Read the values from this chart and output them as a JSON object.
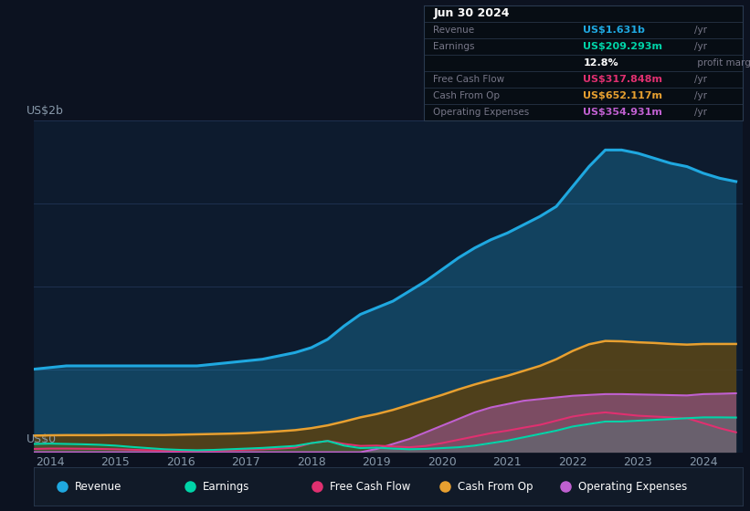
{
  "bg_color": "#0c1220",
  "plot_bg_color": "#0d1b2e",
  "ylabel": "US$2b",
  "y0label": "US$0",
  "series_colors": {
    "Revenue": "#1fa8e0",
    "Earnings": "#00d4a8",
    "Free Cash Flow": "#e03070",
    "Cash From Op": "#e8a030",
    "Operating Expenses": "#c060d0"
  },
  "legend_entries": [
    "Revenue",
    "Earnings",
    "Free Cash Flow",
    "Cash From Op",
    "Operating Expenses"
  ],
  "x_years": [
    2013.75,
    2014.0,
    2014.25,
    2014.5,
    2014.75,
    2015.0,
    2015.25,
    2015.5,
    2015.75,
    2016.0,
    2016.25,
    2016.5,
    2016.75,
    2017.0,
    2017.25,
    2017.5,
    2017.75,
    2018.0,
    2018.25,
    2018.5,
    2018.75,
    2019.0,
    2019.25,
    2019.5,
    2019.75,
    2020.0,
    2020.25,
    2020.5,
    2020.75,
    2021.0,
    2021.25,
    2021.5,
    2021.75,
    2022.0,
    2022.25,
    2022.5,
    2022.75,
    2023.0,
    2023.25,
    2023.5,
    2023.75,
    2024.0,
    2024.25,
    2024.5
  ],
  "revenue": [
    0.5,
    0.51,
    0.52,
    0.52,
    0.52,
    0.52,
    0.52,
    0.52,
    0.52,
    0.52,
    0.52,
    0.53,
    0.54,
    0.55,
    0.56,
    0.58,
    0.6,
    0.63,
    0.68,
    0.76,
    0.83,
    0.87,
    0.91,
    0.97,
    1.03,
    1.1,
    1.17,
    1.23,
    1.28,
    1.32,
    1.37,
    1.42,
    1.48,
    1.6,
    1.72,
    1.82,
    1.82,
    1.8,
    1.77,
    1.74,
    1.72,
    1.68,
    1.65,
    1.63
  ],
  "earnings": [
    0.05,
    0.052,
    0.05,
    0.048,
    0.045,
    0.04,
    0.032,
    0.025,
    0.018,
    0.014,
    0.012,
    0.014,
    0.018,
    0.022,
    0.026,
    0.032,
    0.038,
    0.055,
    0.068,
    0.04,
    0.025,
    0.028,
    0.022,
    0.018,
    0.02,
    0.025,
    0.03,
    0.04,
    0.055,
    0.07,
    0.09,
    0.11,
    0.13,
    0.155,
    0.17,
    0.185,
    0.185,
    0.19,
    0.195,
    0.2,
    0.205,
    0.21,
    0.21,
    0.209
  ],
  "free_cash_flow": [
    0.02,
    0.022,
    0.022,
    0.021,
    0.02,
    0.018,
    0.015,
    0.012,
    0.01,
    0.008,
    0.008,
    0.01,
    0.012,
    0.015,
    0.018,
    0.022,
    0.028,
    0.055,
    0.068,
    0.05,
    0.038,
    0.04,
    0.035,
    0.03,
    0.038,
    0.055,
    0.075,
    0.095,
    0.115,
    0.13,
    0.148,
    0.165,
    0.19,
    0.215,
    0.23,
    0.24,
    0.23,
    0.22,
    0.215,
    0.21,
    0.205,
    0.175,
    0.145,
    0.12
  ],
  "cash_from_op": [
    0.1,
    0.102,
    0.103,
    0.103,
    0.103,
    0.104,
    0.104,
    0.104,
    0.104,
    0.106,
    0.108,
    0.11,
    0.112,
    0.115,
    0.12,
    0.126,
    0.133,
    0.145,
    0.162,
    0.185,
    0.21,
    0.23,
    0.255,
    0.285,
    0.315,
    0.345,
    0.378,
    0.408,
    0.435,
    0.46,
    0.49,
    0.52,
    0.56,
    0.61,
    0.65,
    0.67,
    0.668,
    0.662,
    0.658,
    0.652,
    0.648,
    0.652,
    0.652,
    0.652
  ],
  "operating_exp": [
    0.0,
    0.0,
    0.0,
    0.0,
    0.0,
    0.0,
    0.0,
    0.0,
    0.0,
    0.0,
    0.0,
    0.0,
    0.0,
    0.0,
    0.0,
    0.0,
    0.0,
    0.0,
    0.0,
    0.0,
    0.0,
    0.02,
    0.05,
    0.08,
    0.12,
    0.16,
    0.2,
    0.24,
    0.27,
    0.29,
    0.31,
    0.32,
    0.33,
    0.34,
    0.345,
    0.35,
    0.35,
    0.348,
    0.346,
    0.344,
    0.342,
    0.35,
    0.352,
    0.355
  ],
  "ylim": [
    0,
    2.0
  ],
  "xlim": [
    2013.75,
    2024.6
  ],
  "xticks": [
    2014,
    2015,
    2016,
    2017,
    2018,
    2019,
    2020,
    2021,
    2022,
    2023,
    2024
  ],
  "grid_color": "#1e3050",
  "tick_label_color": "#8899aa",
  "legend_bg": "#111a28",
  "infobox_bg": "#070d14",
  "infobox_border": "#2a3a50"
}
